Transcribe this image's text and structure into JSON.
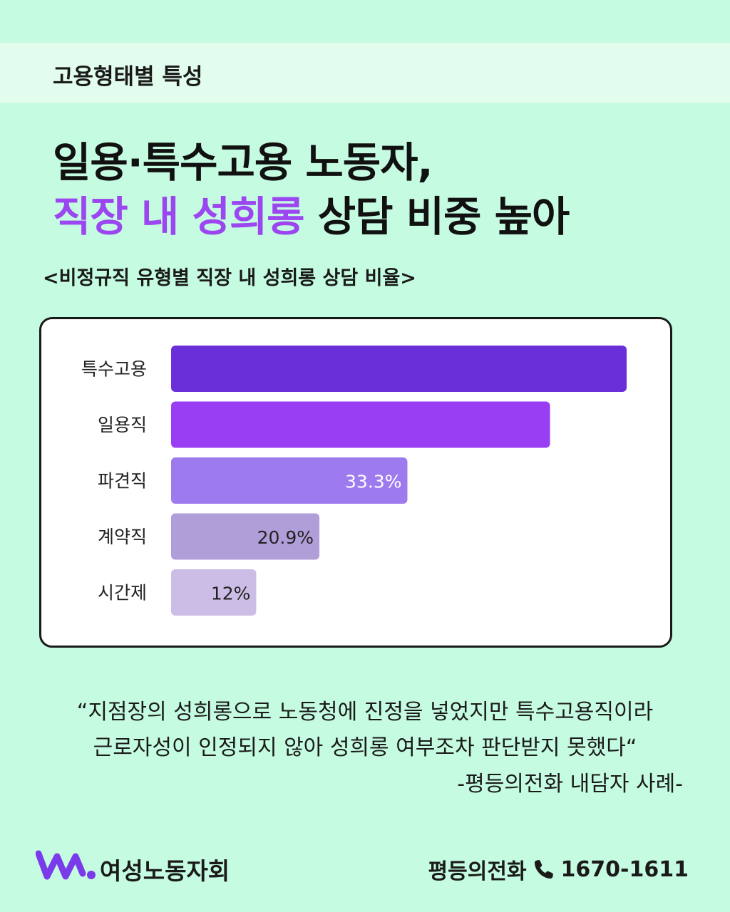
{
  "header": {
    "section_label": "고용형태별 특성"
  },
  "headline": {
    "line1": "일용·특수고용 노동자,",
    "line2_accent": "직장 내 성희롱",
    "line2_rest": " 상담 비중 높아"
  },
  "chart_data": {
    "type": "bar",
    "orientation": "horizontal",
    "title": "<비정규직 유형별 직장 내 성희롱 상담 비율>",
    "categories": [
      "특수고용",
      "일용직",
      "파견직",
      "계약직",
      "시간제"
    ],
    "values": [
      64.2,
      53.4,
      33.3,
      20.9,
      12
    ],
    "value_labels": [
      "",
      "",
      "33.3%",
      "20.9%",
      "12%"
    ],
    "colors": [
      "#6a2fd8",
      "#9a3ef3",
      "#9e7aef",
      "#b09ed8",
      "#cbbde6"
    ],
    "xlim": [
      0,
      65
    ],
    "xlabel": "",
    "ylabel": "",
    "grid": false,
    "legend": "none"
  },
  "quote": {
    "line1": "“지점장의 성희롱으로 노동청에 진정을 넣었지만 특수고용직이라",
    "line2": "근로자성이 인정되지 않아 성희롱 여부조차 판단받지 못했다“",
    "source": "-평등의전화 내담자 사례-"
  },
  "footer": {
    "org_name": "여성노동자회",
    "hotline_label": "평등의전화",
    "phone_number": "1670-1611",
    "logo_icon": "wave-w-logo-icon",
    "phone_icon": "phone-icon"
  },
  "colors": {
    "background": "#c5fbe0",
    "topbar": "#e2fdee",
    "accent": "#9b46f0",
    "logo": "#7a3bea"
  }
}
